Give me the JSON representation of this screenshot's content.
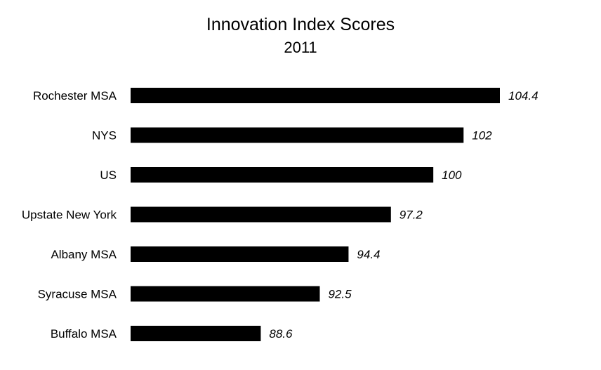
{
  "chart_data": {
    "type": "bar",
    "orientation": "horizontal",
    "title": "Innovation Index Scores",
    "subtitle": "2011",
    "categories": [
      "Rochester MSA",
      "NYS",
      "US",
      "Upstate New York",
      "Albany MSA",
      "Syracuse MSA",
      "Buffalo MSA"
    ],
    "values": [
      104.4,
      102,
      100,
      97.2,
      94.4,
      92.5,
      88.6
    ],
    "value_labels": [
      "104.4",
      "102",
      "100",
      "97.2",
      "94.4",
      "92.5",
      "88.6"
    ],
    "xlim": [
      80,
      105
    ],
    "bar_color": "#000000",
    "grid": false,
    "legend": "none"
  }
}
